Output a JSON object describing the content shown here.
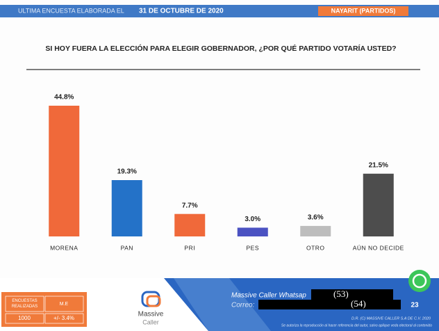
{
  "header": {
    "intro": "ULTIMA ENCUESTA ELABORADA EL",
    "date": "31 DE OCTUBRE DE 2020",
    "region": "NAYARIT (PARTIDOS)"
  },
  "chart_data": {
    "type": "bar",
    "title": "SI HOY FUERA LA ELECCIÓN PARA ELEGIR GOBERNADOR, ¿POR QUÉ PARTIDO VOTARÍA USTED?",
    "categories": [
      "MORENA",
      "PAN",
      "PRI",
      "PES",
      "OTRO",
      "AÚN NO DECIDE"
    ],
    "values": [
      44.8,
      19.3,
      7.7,
      3.0,
      3.6,
      21.5
    ],
    "value_labels": [
      "44.8%",
      "19.3%",
      "7.7%",
      "3.0%",
      "3.6%",
      "21.5%"
    ],
    "colors": [
      "#f0693a",
      "#2472c8",
      "#f0693a",
      "#4b52c2",
      "#bdbdbd",
      "#4d4d4d"
    ]
  },
  "footer": {
    "surveys_label": "ENCUESTAS REALIZADAS",
    "me_label": "M.E",
    "surveys": "1000",
    "me": "+/- 3.4%",
    "logo_top": "Massive",
    "logo_bottom": "Caller",
    "line1": "Massive Caller Whatsap",
    "line2": "Correo:",
    "redact1": "(53)",
    "redact2": "(54)",
    "page": "23",
    "copyright": "D.R. (C) MASSIVE CALLER S.A DE C.V. 2020",
    "notice": "Se autoriza la reproducción al hacer referencia del autor, salvo aplique veda electoral al contenido"
  }
}
